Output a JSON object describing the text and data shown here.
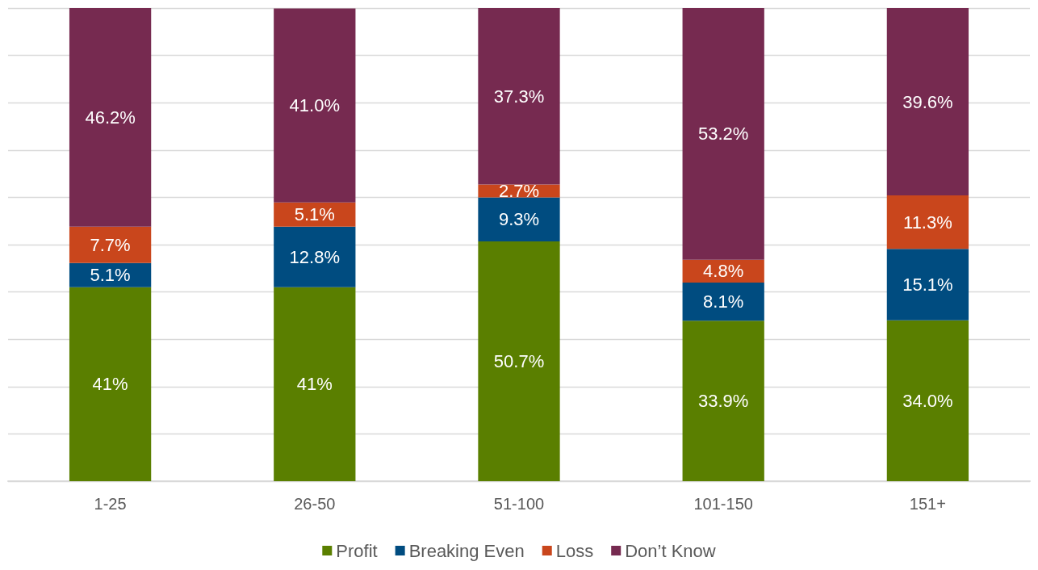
{
  "chart_data": {
    "type": "bar",
    "stacked": true,
    "categories": [
      "1-25",
      "26-50",
      "51-100",
      "101-150",
      "151+"
    ],
    "series": [
      {
        "name": "Profit",
        "color": "#5a7f00",
        "values": [
          41,
          41,
          50.7,
          33.9,
          34.0
        ],
        "value_labels": [
          "41%",
          "41%",
          "50.7%",
          "33.9%",
          "34.0%"
        ]
      },
      {
        "name": "Breaking Even",
        "color": "#004c80",
        "values": [
          5.1,
          12.8,
          9.3,
          8.1,
          15.1
        ],
        "value_labels": [
          "5.1%",
          "12.8%",
          "9.3%",
          "8.1%",
          "15.1%"
        ]
      },
      {
        "name": "Loss",
        "color": "#c9461c",
        "values": [
          7.7,
          5.1,
          2.7,
          4.8,
          11.3
        ],
        "value_labels": [
          "7.7%",
          "5.1%",
          "2.7%",
          "4.8%",
          "11.3%"
        ]
      },
      {
        "name": "Don’t Know",
        "color": "#762a50",
        "values": [
          46.2,
          41.0,
          37.3,
          53.2,
          39.6
        ],
        "value_labels": [
          "46.2%",
          "41.0%",
          "37.3%",
          "53.2%",
          "39.6%"
        ]
      }
    ],
    "ylim": [
      0,
      100
    ],
    "yticks": [
      0,
      10,
      20,
      30,
      40,
      50,
      60,
      70,
      80,
      90,
      100
    ],
    "tick_labels": "x",
    "grid": "y",
    "legend": "bottom"
  }
}
